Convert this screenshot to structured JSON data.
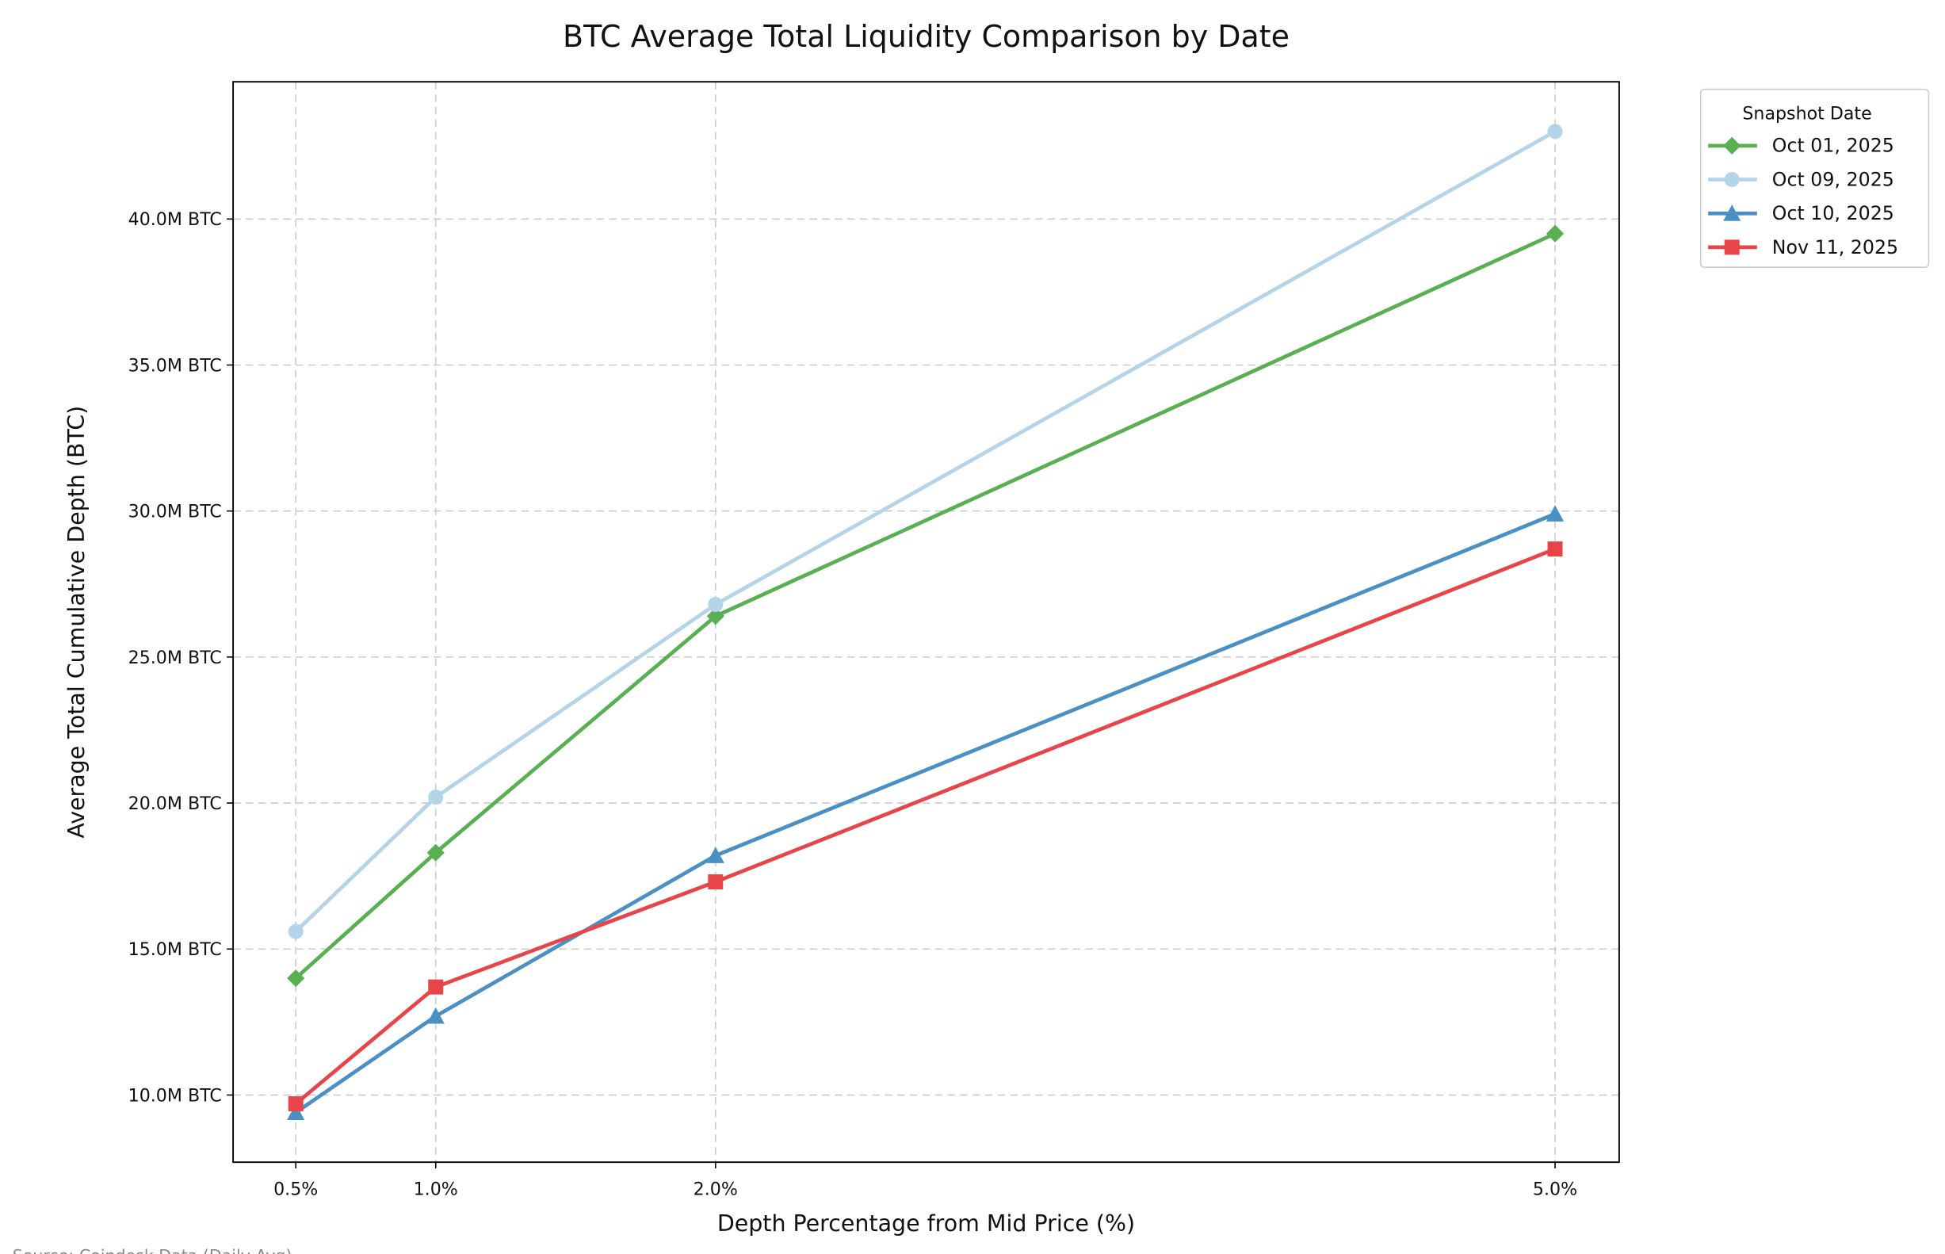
{
  "chart_data": {
    "type": "line",
    "title": "BTC Average Total Liquidity Comparison by Date",
    "xlabel": "Depth Percentage from Mid Price (%)",
    "ylabel": "Average Total Cumulative Depth (BTC)",
    "x": [
      0.5,
      1.0,
      2.0,
      5.0
    ],
    "x_tick_labels": [
      "0.5%",
      "1.0%",
      "2.0%",
      "5.0%"
    ],
    "y_ticks": [
      10,
      15,
      20,
      25,
      30,
      35,
      40
    ],
    "y_tick_labels": [
      "10.0M BTC",
      "15.0M BTC",
      "20.0M BTC",
      "25.0M BTC",
      "30.0M BTC",
      "35.0M BTC",
      "40.0M BTC"
    ],
    "xlim": [
      0.276,
      5.229
    ],
    "ylim": [
      7.7,
      44.7
    ],
    "y_unit": "M BTC",
    "grid": true,
    "legend": {
      "title": "Snapshot Date",
      "placement": "outside-top-right"
    },
    "series": [
      {
        "name": "Oct 01, 2025",
        "color": "#59b052",
        "marker": "diamond",
        "values": [
          14.0,
          18.3,
          26.4,
          39.5
        ]
      },
      {
        "name": "Oct 09, 2025",
        "color": "#b4d4e7",
        "marker": "circle",
        "values": [
          15.6,
          20.2,
          26.8,
          43.0
        ]
      },
      {
        "name": "Oct 10, 2025",
        "color": "#4a90c4",
        "marker": "triangle",
        "values": [
          9.4,
          12.7,
          18.2,
          29.9
        ]
      },
      {
        "name": "Nov 11, 2025",
        "color": "#e8454a",
        "marker": "square",
        "values": [
          9.7,
          13.7,
          17.3,
          28.7
        ]
      }
    ],
    "source_note": "Source: Coindesk Data (Daily Avg)"
  }
}
